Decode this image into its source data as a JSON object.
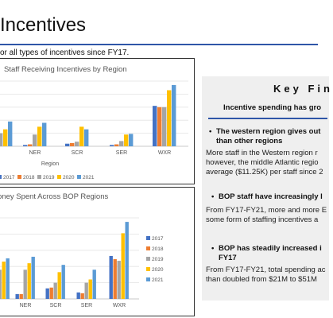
{
  "header": {
    "title": "Incentives",
    "subtitle": "or all types of incentives since FY17."
  },
  "colors": {
    "2017": "#4472c4",
    "2018": "#ed7d31",
    "2019": "#a5a5a5",
    "2020": "#ffc000",
    "2021": "#5b9bd5",
    "accent": "#2f56a8"
  },
  "chart_data": [
    {
      "type": "bar",
      "title": "Staff Receiving Incentives by Region",
      "xlabel": "Region",
      "categories": [
        "",
        "NER",
        "SCR",
        "SER",
        "WXR"
      ],
      "ylim": [
        0,
        100
      ],
      "legend": "bottom",
      "series": [
        {
          "name": "2017",
          "values": [
            18,
            2,
            4,
            2,
            62
          ]
        },
        {
          "name": "2018",
          "values": [
            18,
            3,
            5,
            3,
            60
          ]
        },
        {
          "name": "2019",
          "values": [
            20,
            18,
            7,
            8,
            60
          ]
        },
        {
          "name": "2020",
          "values": [
            26,
            30,
            30,
            18,
            86
          ]
        },
        {
          "name": "2021",
          "values": [
            38,
            36,
            26,
            19,
            94
          ]
        }
      ]
    },
    {
      "type": "bar",
      "title": "oney Spent Across BOP Regions",
      "categories": [
        "",
        "NER",
        "SCR",
        "SER",
        "WXR"
      ],
      "ylim": [
        0,
        100
      ],
      "legend": "right",
      "series": [
        {
          "name": "2017",
          "values": [
            20,
            6,
            13,
            8,
            53
          ]
        },
        {
          "name": "2018",
          "values": [
            20,
            6,
            14,
            7,
            49
          ]
        },
        {
          "name": "2019",
          "values": [
            36,
            36,
            20,
            20,
            47
          ]
        },
        {
          "name": "2020",
          "values": [
            46,
            44,
            33,
            24,
            81
          ]
        },
        {
          "name": "2021",
          "values": [
            50,
            52,
            42,
            36,
            95
          ]
        }
      ]
    }
  ],
  "key_findings": {
    "title": "Key Fin",
    "subtitle": "Incentive spending has gro",
    "items": [
      {
        "head_lines": [
          "The western region gives out",
          "than other regions"
        ],
        "body_lines": [
          "More staff in the Western region r",
          "however, the middle Atlantic regio",
          "average ($11.25K) per staff since 2"
        ]
      },
      {
        "head_lines": [
          "BOP staff have increasingly l"
        ],
        "body_lines": [
          "From FY17-FY21, more and more E",
          "some form of staffing incentives a"
        ]
      },
      {
        "head_lines": [
          "BOP has steadily increased i",
          "FY17"
        ],
        "body_lines": [
          "From FY17-FY21, total spending ac",
          "than doubled from $21M to $51M"
        ]
      }
    ]
  }
}
